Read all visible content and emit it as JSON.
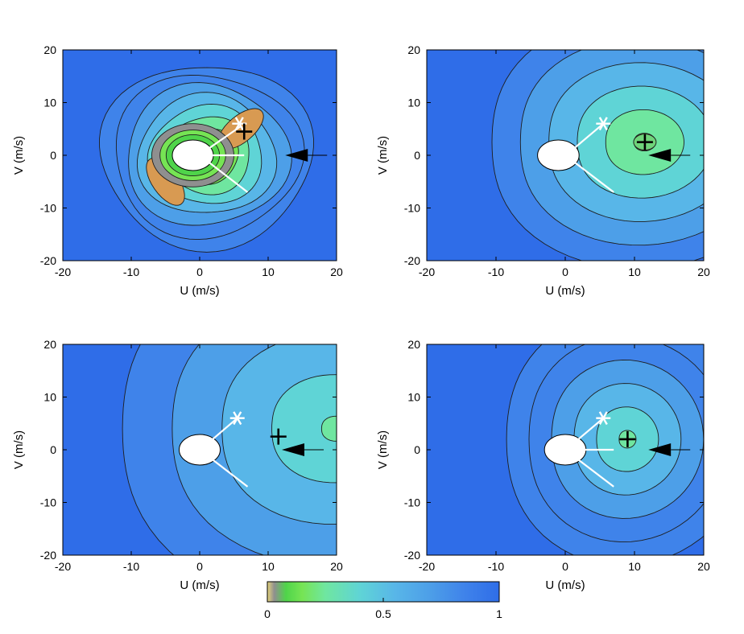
{
  "chart_data": [
    {
      "type": "contour",
      "panel": "top-left",
      "xlabel": "U (m/s)",
      "ylabel": "V (m/s)",
      "xlim": [
        -20,
        20
      ],
      "ylim": [
        -20,
        20
      ],
      "xticks": [
        "-20",
        "-10",
        "0",
        "10",
        "20"
      ],
      "yticks": [
        "20",
        "10",
        "0",
        "-10",
        "-20"
      ],
      "contour_levels": [
        0.95,
        0.85,
        0.7,
        0.55,
        0.4,
        0.25,
        0.15,
        0.08,
        0.03
      ],
      "field_minimum_value": 0,
      "obstacle_center": [
        -1,
        0
      ],
      "plus_marker": [
        6.5,
        4.5
      ],
      "star_marker": [
        5.8,
        6
      ],
      "arrow_tip": [
        12.5,
        0
      ],
      "white_lines": [
        [
          [
            1,
            0
          ],
          [
            6.5,
            0
          ]
        ],
        [
          [
            1,
            1
          ],
          [
            6,
            5.5
          ]
        ],
        [
          [
            1,
            -1
          ],
          [
            7,
            -7
          ]
        ]
      ],
      "white_spiral": true
    },
    {
      "type": "contour",
      "panel": "top-right",
      "xlabel": "U (m/s)",
      "ylabel": "V (m/s)",
      "xlim": [
        -20,
        20
      ],
      "ylim": [
        -20,
        20
      ],
      "xticks": [
        "-20",
        "-10",
        "0",
        "10",
        "20"
      ],
      "yticks": [
        "20",
        "10",
        "0",
        "-10",
        "-20"
      ],
      "contour_levels": [
        0.95,
        0.8,
        0.65,
        0.5,
        0.35,
        0.2
      ],
      "field_minimum": [
        11.5,
        2.5
      ],
      "obstacle_center": [
        -1,
        0
      ],
      "plus_marker": [
        11.5,
        2.5
      ],
      "star_marker": [
        5.5,
        6
      ],
      "arrow_tip": [
        12,
        0
      ],
      "white_lines": [
        [
          [
            1,
            1
          ],
          [
            5.5,
            6
          ]
        ],
        [
          [
            1,
            -1
          ],
          [
            7,
            -7
          ]
        ]
      ]
    },
    {
      "type": "contour",
      "panel": "bottom-left",
      "xlabel": "U (m/s)",
      "ylabel": "V (m/s)",
      "xlim": [
        -20,
        20
      ],
      "ylim": [
        -20,
        20
      ],
      "xticks": [
        "-20",
        "-10",
        "0",
        "10",
        "20"
      ],
      "yticks": [
        "20",
        "10",
        "0",
        "-10",
        "-20"
      ],
      "contour_levels": [
        0.95,
        0.8,
        0.65,
        0.5,
        0.35
      ],
      "field_minimum": [
        20,
        4
      ],
      "obstacle_center": [
        0,
        0
      ],
      "plus_marker": [
        11.5,
        2.5
      ],
      "star_marker": [
        5.5,
        6
      ],
      "arrow_tip": [
        12,
        0
      ],
      "white_lines": [
        [
          [
            1,
            1
          ],
          [
            5.5,
            6
          ]
        ],
        [
          [
            1,
            -1
          ],
          [
            7,
            -7
          ]
        ]
      ]
    },
    {
      "type": "contour",
      "panel": "bottom-right",
      "xlabel": "U (m/s)",
      "ylabel": "V (m/s)",
      "xlim": [
        -20,
        20
      ],
      "ylim": [
        -20,
        20
      ],
      "xticks": [
        "-20",
        "-10",
        "0",
        "10",
        "20"
      ],
      "yticks": [
        "20",
        "10",
        "0",
        "-10",
        "-20"
      ],
      "contour_levels": [
        0.95,
        0.85,
        0.7,
        0.55,
        0.4,
        0.25
      ],
      "field_minimum": [
        9,
        2
      ],
      "obstacle_center": [
        0,
        0
      ],
      "plus_marker": [
        9,
        2
      ],
      "star_marker": [
        5.5,
        6
      ],
      "arrow_tip": [
        12,
        0
      ],
      "white_lines": [
        [
          [
            1,
            0
          ],
          [
            7,
            0
          ]
        ],
        [
          [
            1,
            1
          ],
          [
            5.5,
            6
          ]
        ],
        [
          [
            1,
            -1
          ],
          [
            7,
            -7
          ]
        ]
      ]
    }
  ],
  "colorbar": {
    "ticks": [
      "0",
      "0.5",
      "1"
    ],
    "range": [
      0,
      1
    ],
    "stops": [
      {
        "v": 0.0,
        "color": "#e3d37c"
      },
      {
        "v": 0.03,
        "color": "#8f8f8f"
      },
      {
        "v": 0.08,
        "color": "#4fd44a"
      },
      {
        "v": 0.15,
        "color": "#76e454"
      },
      {
        "v": 0.25,
        "color": "#6fe6a0"
      },
      {
        "v": 0.4,
        "color": "#5fd4d6"
      },
      {
        "v": 0.55,
        "color": "#58b6e8"
      },
      {
        "v": 0.7,
        "color": "#4d9fe8"
      },
      {
        "v": 0.85,
        "color": "#3f83ea"
      },
      {
        "v": 1.0,
        "color": "#2f6de8"
      }
    ]
  }
}
